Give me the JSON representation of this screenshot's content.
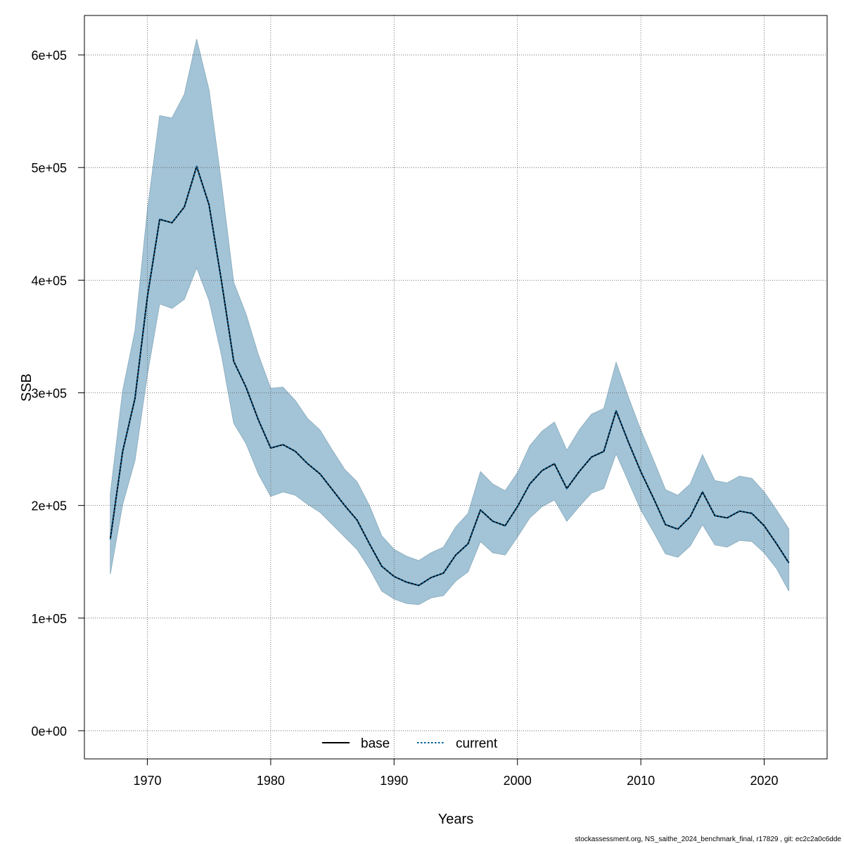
{
  "chart_data": {
    "type": "line",
    "title": "",
    "xlabel": "Years",
    "ylabel": "SSB",
    "xlim": [
      1964.9,
      2025.1
    ],
    "ylim": [
      -25000,
      635000
    ],
    "x_ticks": [
      1970,
      1980,
      1990,
      2000,
      2010,
      2020
    ],
    "x_tick_labels": [
      "1970",
      "1980",
      "1990",
      "2000",
      "2010",
      "2020"
    ],
    "y_ticks": [
      0,
      100000,
      200000,
      300000,
      400000,
      500000,
      600000
    ],
    "y_tick_labels": [
      "0e+00",
      "1e+05",
      "2e+05",
      "3e+05",
      "4e+05",
      "5e+05",
      "6e+05"
    ],
    "grid": true,
    "legend_position": "bottom",
    "x": [
      1967,
      1968,
      1969,
      1970,
      1971,
      1972,
      1973,
      1974,
      1975,
      1976,
      1977,
      1978,
      1979,
      1980,
      1981,
      1982,
      1983,
      1984,
      1985,
      1986,
      1987,
      1988,
      1989,
      1990,
      1991,
      1992,
      1993,
      1994,
      1995,
      1996,
      1997,
      1998,
      1999,
      2000,
      2001,
      2002,
      2003,
      2004,
      2005,
      2006,
      2007,
      2008,
      2009,
      2010,
      2011,
      2012,
      2013,
      2014,
      2015,
      2016,
      2017,
      2018,
      2019,
      2020,
      2021,
      2022
    ],
    "series": [
      {
        "name": "base",
        "style": "solid",
        "color": "#000000",
        "values": [
          170000,
          248000,
          295000,
          385000,
          454000,
          451000,
          465000,
          501000,
          467000,
          400000,
          328000,
          305000,
          276000,
          251000,
          254000,
          248000,
          237000,
          228000,
          214000,
          200000,
          187000,
          166000,
          146000,
          137000,
          132000,
          129000,
          136000,
          140000,
          156000,
          166000,
          196000,
          186000,
          182000,
          199000,
          219000,
          231000,
          237000,
          215000,
          230000,
          243000,
          248000,
          284000,
          256000,
          230000,
          207000,
          183000,
          179000,
          190000,
          212000,
          191000,
          189000,
          195000,
          193000,
          182000,
          166000,
          149000
        ]
      },
      {
        "name": "current",
        "style": "dotted",
        "color": "#00609c",
        "values": [
          170000,
          248000,
          295000,
          385000,
          454000,
          451000,
          465000,
          501000,
          467000,
          400000,
          328000,
          305000,
          276000,
          251000,
          254000,
          248000,
          237000,
          228000,
          214000,
          200000,
          187000,
          166000,
          146000,
          137000,
          132000,
          129000,
          136000,
          140000,
          156000,
          166000,
          196000,
          186000,
          182000,
          199000,
          219000,
          231000,
          237000,
          215000,
          230000,
          243000,
          248000,
          284000,
          256000,
          230000,
          207000,
          183000,
          179000,
          190000,
          212000,
          191000,
          189000,
          195000,
          193000,
          182000,
          166000,
          149000
        ]
      }
    ],
    "confidence_band": {
      "color": "#a3c4d6",
      "upper": [
        210000,
        302000,
        355000,
        462000,
        546000,
        544000,
        565000,
        614000,
        569000,
        487000,
        398000,
        370000,
        334000,
        304000,
        305000,
        293000,
        277000,
        267000,
        249000,
        232000,
        221000,
        200000,
        173000,
        161000,
        155000,
        151000,
        158000,
        163000,
        181000,
        193000,
        230000,
        219000,
        213000,
        229000,
        253000,
        266000,
        274000,
        249000,
        267000,
        281000,
        286000,
        327000,
        296000,
        267000,
        241000,
        214000,
        209000,
        219000,
        245000,
        222000,
        220000,
        226000,
        224000,
        212000,
        196000,
        179000
      ],
      "lower": [
        139000,
        201000,
        240000,
        316000,
        379000,
        375000,
        383000,
        411000,
        382000,
        334000,
        273000,
        255000,
        228000,
        208000,
        212000,
        209000,
        201000,
        194000,
        183000,
        172000,
        161000,
        144000,
        124000,
        117000,
        113000,
        112000,
        118000,
        120000,
        133000,
        141000,
        168000,
        158000,
        156000,
        172000,
        189000,
        199000,
        205000,
        186000,
        199000,
        211000,
        215000,
        246000,
        221000,
        196000,
        177000,
        157000,
        154000,
        164000,
        183000,
        165000,
        163000,
        169000,
        168000,
        158000,
        144000,
        124000
      ]
    },
    "legend": [
      {
        "label": "base",
        "style": "solid",
        "color": "#000000"
      },
      {
        "label": "current",
        "style": "dotted",
        "color": "#00609c"
      }
    ]
  },
  "footer_text": "stockassessment.org, NS_saithe_2024_benchmark_final, r17829 , git: ec2c2a0c6dde"
}
